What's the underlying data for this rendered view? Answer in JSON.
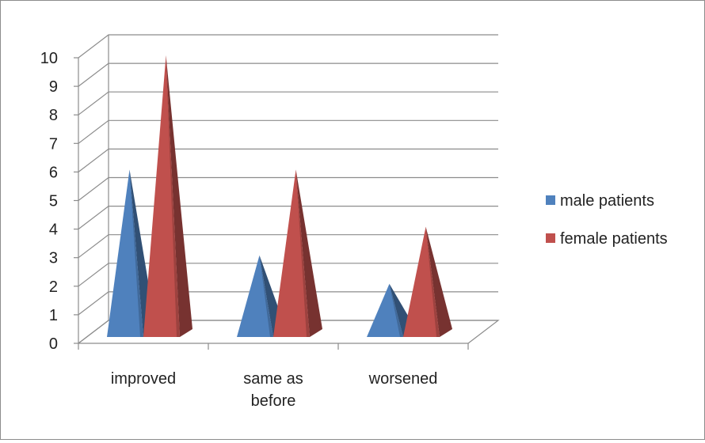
{
  "chart_data": {
    "type": "bar",
    "style": "3d-pyramid",
    "categories": [
      {
        "lines": [
          "improved"
        ]
      },
      {
        "lines": [
          "same as",
          "before"
        ]
      },
      {
        "lines": [
          "worsened"
        ]
      }
    ],
    "series": [
      {
        "name": "male patients",
        "values": [
          6,
          3,
          2
        ],
        "color": "#4f81bd"
      },
      {
        "name": "female patients",
        "values": [
          10,
          6,
          4
        ],
        "color": "#c0504d"
      }
    ],
    "title": "",
    "xlabel": "",
    "ylabel": "",
    "ylim": [
      0,
      10
    ],
    "yticks": [
      0,
      1,
      2,
      3,
      4,
      5,
      6,
      7,
      8,
      9,
      10
    ],
    "grid": true,
    "legend_position": "right"
  }
}
